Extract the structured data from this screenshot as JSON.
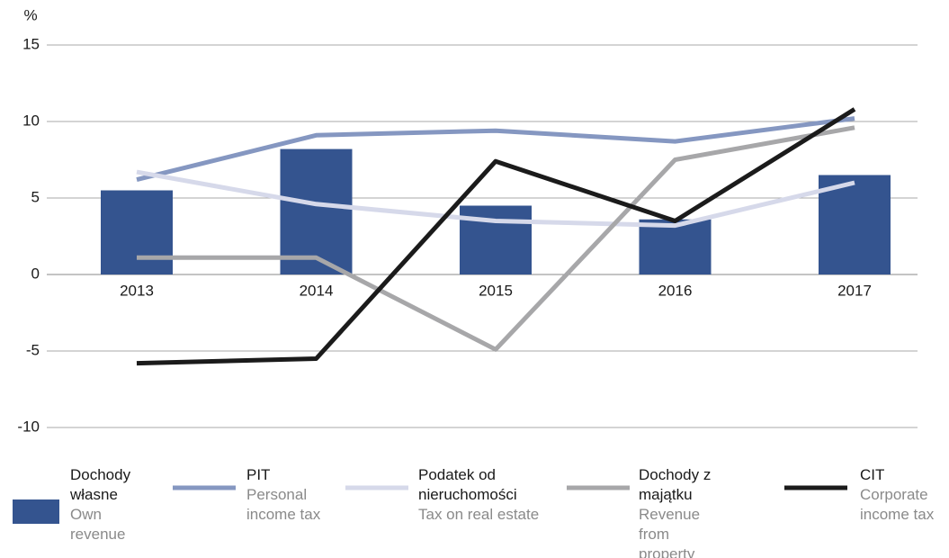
{
  "chart_data": {
    "type": "bar+line",
    "y_label": "%",
    "categories": [
      "2013",
      "2014",
      "2015",
      "2016",
      "2017"
    ],
    "ylim": [
      -10,
      15
    ],
    "yticks": [
      -10,
      -5,
      0,
      5,
      10,
      15
    ],
    "grid": true,
    "series": [
      {
        "name": "Dochody własne",
        "name_en": "Own revenue",
        "type": "bar",
        "color": "#34548f",
        "values": [
          5.5,
          8.2,
          4.5,
          3.6,
          6.5
        ]
      },
      {
        "name": "PIT",
        "name_en": "Personal income tax",
        "type": "line",
        "color": "#8597c1",
        "values": [
          6.2,
          9.1,
          9.4,
          8.7,
          10.2
        ]
      },
      {
        "name": "Podatek od nieruchomości",
        "name_en": "Tax on real estate",
        "type": "line",
        "color": "#d6d9ea",
        "values": [
          6.7,
          4.6,
          3.5,
          3.2,
          6.0
        ]
      },
      {
        "name": "Dochody z majątku",
        "name_en": "Revenue from property",
        "type": "line",
        "color": "#a7a7a9",
        "values": [
          1.1,
          1.1,
          -4.9,
          7.5,
          9.6
        ]
      },
      {
        "name": "CIT",
        "name_en": "Corporate income tax",
        "type": "line",
        "color": "#1b1b1b",
        "values": [
          -5.8,
          -5.5,
          7.4,
          3.5,
          10.8
        ]
      }
    ]
  }
}
